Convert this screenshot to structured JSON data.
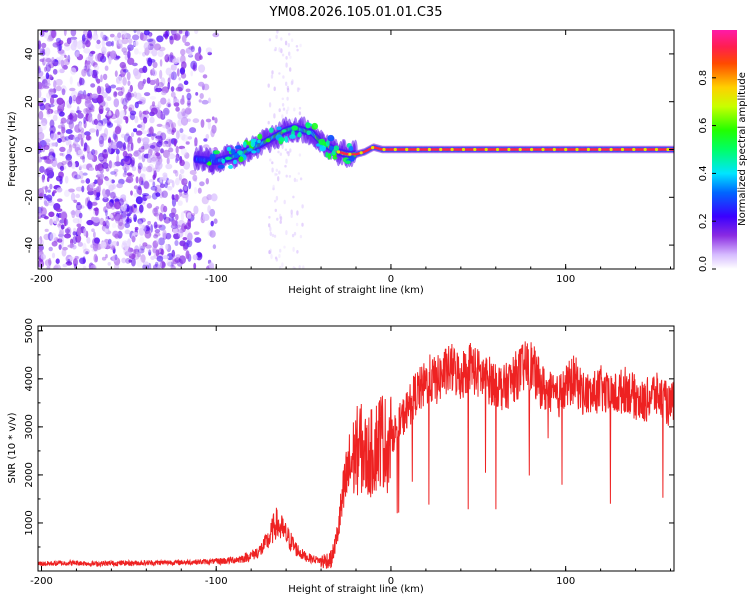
{
  "title": "YM08.2026.105.01.01.C35",
  "chart_data": [
    {
      "type": "heatmap",
      "xlabel": "Height of straight line (km)",
      "ylabel": "Frequency (Hz)",
      "xlim": [
        -202,
        162
      ],
      "ylim": [
        -50,
        50
      ],
      "x_ticks": [
        -200,
        -100,
        0,
        100
      ],
      "y_ticks": [
        -40,
        -20,
        0,
        20,
        40
      ],
      "colorbar": {
        "label": "Normalized spectral amplitude",
        "range": [
          0.0,
          1.0
        ],
        "ticks": [
          0.0,
          0.2,
          0.4,
          0.6,
          0.8
        ],
        "tick_labels": [
          "0.0",
          "0.2",
          "0.4",
          "0.6",
          "0.8"
        ]
      },
      "noise_region": {
        "x_range": [
          -202,
          -100
        ],
        "freq_range": [
          -50,
          50
        ],
        "amplitude": 0.1
      },
      "sparse_region": {
        "x_range": [
          -70,
          -50
        ],
        "freq_range": [
          -50,
          50
        ],
        "amplitude": 0.05
      },
      "ridge": {
        "x": [
          -112,
          -100,
          -90,
          -80,
          -70,
          -60,
          -55,
          -50,
          -45,
          -40,
          -35,
          -30,
          -25,
          -20,
          -15,
          -10,
          -5,
          0,
          10,
          20,
          40,
          60,
          80,
          100,
          120,
          140,
          162
        ],
        "freq": [
          -4,
          -5,
          -3,
          0,
          4,
          8,
          9,
          8,
          7,
          3,
          1,
          -1,
          -2,
          -2,
          -1,
          1,
          0,
          0,
          0,
          0,
          0,
          0,
          0,
          0,
          0,
          0,
          0
        ],
        "amplitude": [
          0.3,
          0.35,
          0.4,
          0.5,
          0.5,
          0.55,
          0.5,
          0.5,
          0.5,
          0.6,
          0.7,
          0.8,
          0.85,
          0.9,
          0.9,
          0.9,
          0.9,
          0.92,
          0.92,
          0.92,
          0.92,
          0.92,
          0.92,
          0.92,
          0.92,
          0.92,
          0.92
        ]
      }
    },
    {
      "type": "line",
      "xlabel": "Height of straight line (km)",
      "ylabel": "SNR (10 * v/v)",
      "xlim": [
        -202,
        162
      ],
      "ylim": [
        0,
        5100
      ],
      "x_ticks": [
        -200,
        -100,
        0,
        100
      ],
      "y_ticks": [
        1000,
        2000,
        3000,
        4000,
        5000
      ],
      "series": [
        {
          "name": "SNR",
          "color": "#ee2222",
          "x": [
            -202,
            -190,
            -180,
            -170,
            -160,
            -150,
            -140,
            -130,
            -120,
            -110,
            -100,
            -95,
            -90,
            -85,
            -80,
            -75,
            -70,
            -66,
            -62,
            -58,
            -54,
            -50,
            -46,
            -42,
            -38,
            -34,
            -31,
            -28,
            -25,
            -22,
            -18,
            -14,
            -10,
            -6,
            -2,
            2,
            6,
            10,
            14,
            18,
            22,
            26,
            30,
            35,
            40,
            45,
            50,
            55,
            60,
            65,
            70,
            75,
            80,
            85,
            90,
            95,
            100,
            105,
            110,
            115,
            120,
            125,
            130,
            135,
            140,
            145,
            150,
            155,
            160,
            162
          ],
          "y": [
            150,
            160,
            170,
            150,
            160,
            165,
            170,
            175,
            180,
            190,
            200,
            210,
            230,
            260,
            320,
            420,
            650,
            1000,
            850,
            650,
            450,
            320,
            260,
            230,
            200,
            240,
            700,
            1400,
            2000,
            2300,
            2600,
            2350,
            2500,
            2800,
            2600,
            2900,
            3150,
            3400,
            3700,
            3800,
            4000,
            3950,
            4100,
            4200,
            4050,
            4300,
            4100,
            4000,
            3900,
            3800,
            4000,
            4200,
            4300,
            3900,
            3700,
            3600,
            3800,
            4000,
            3700,
            3650,
            3800,
            3600,
            3700,
            3800,
            3600,
            3500,
            3700,
            3600,
            3400,
            3600
          ]
        }
      ]
    }
  ],
  "colors": {
    "line": "#ee2222",
    "background": "#ffffff",
    "axis": "#000000"
  }
}
